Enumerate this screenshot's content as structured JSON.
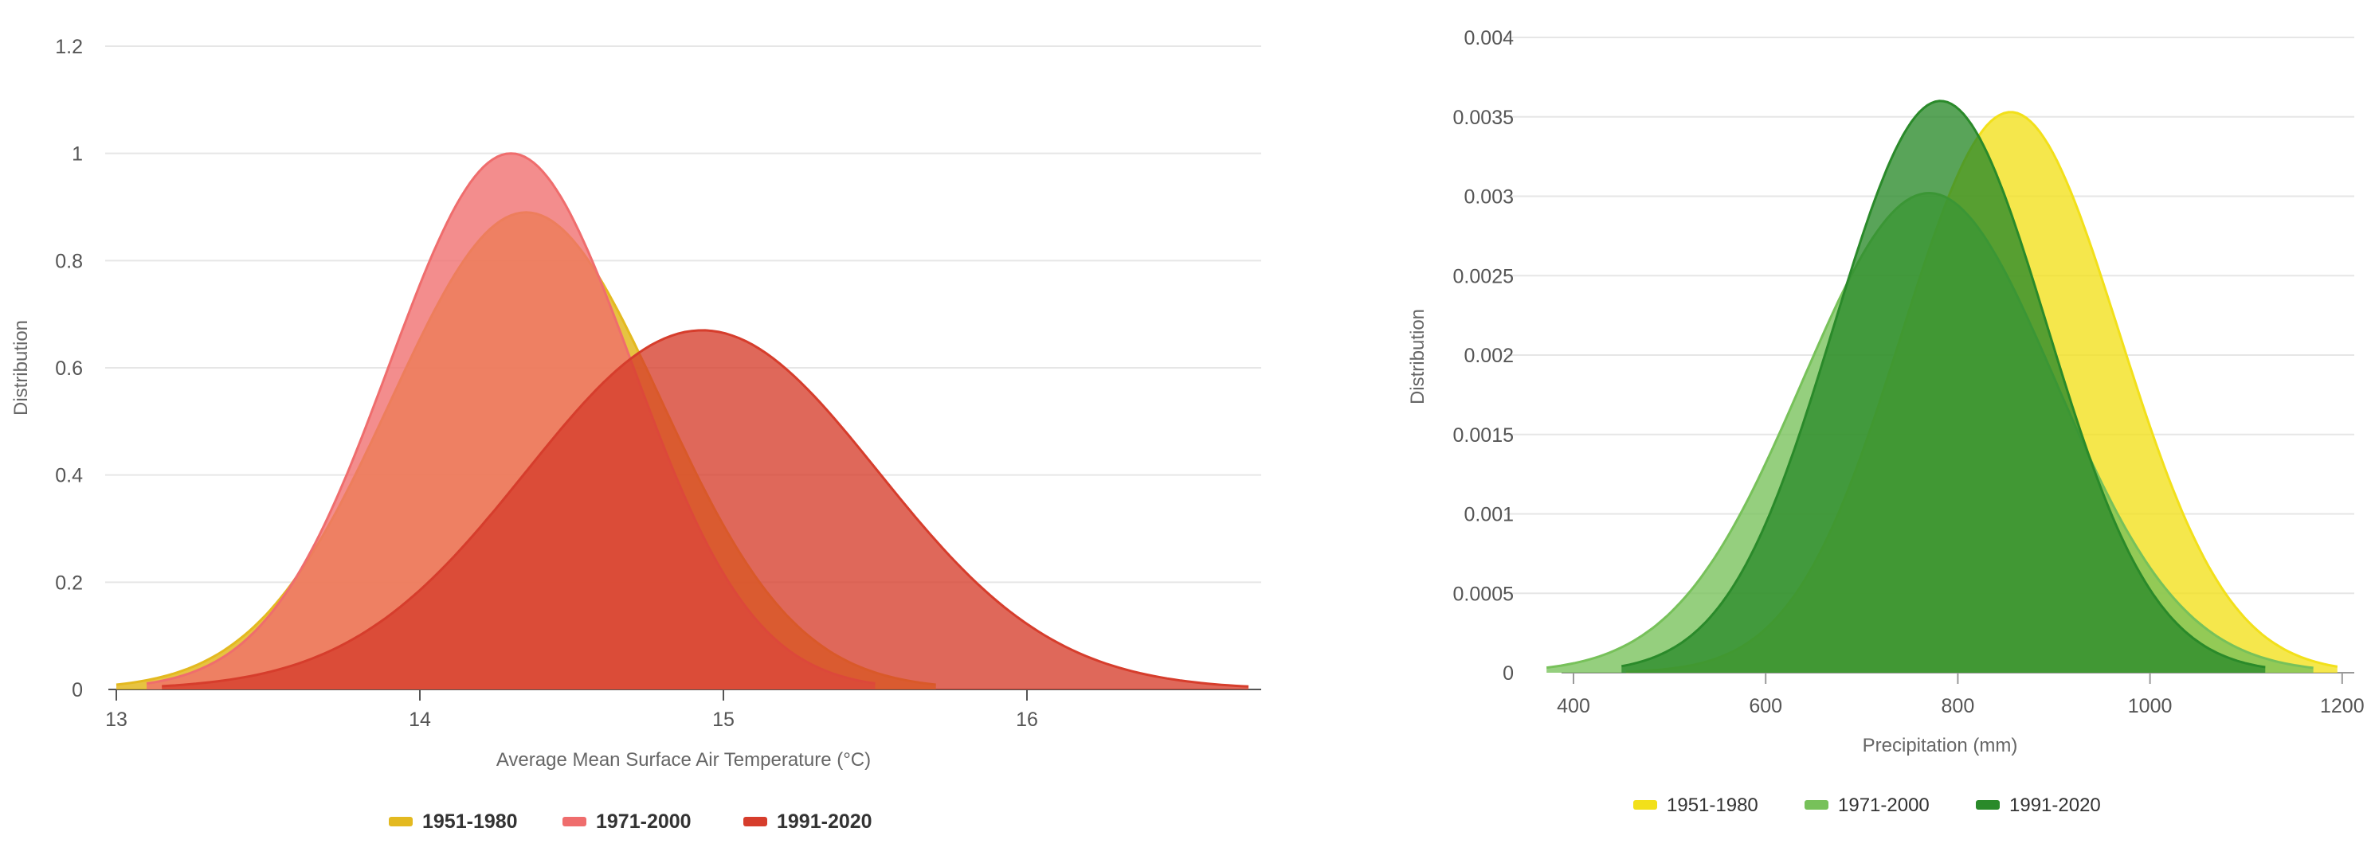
{
  "chart_data": [
    {
      "type": "area",
      "title": "",
      "xlabel": "Average Mean Surface Air Temperature (°C)",
      "ylabel": "Distribution",
      "xlim": [
        12.98,
        16.73
      ],
      "ylim": [
        0,
        1.2
      ],
      "x_ticks": [
        "13",
        "14",
        "15",
        "16"
      ],
      "y_ticks": [
        "0",
        "0.2",
        "0.4",
        "0.6",
        "0.8",
        "1",
        "1.2"
      ],
      "grid": true,
      "legend_position": "bottom-center",
      "series": [
        {
          "name": "1951-1980",
          "color": "#e3b920",
          "mean": 14.35,
          "sd": 0.445,
          "peak": 0.89,
          "range": [
            13.0,
            15.7
          ]
        },
        {
          "name": "1971-2000",
          "color": "#ef6d6d",
          "mean": 14.3,
          "sd": 0.4,
          "peak": 1.0,
          "range": [
            13.1,
            15.5
          ]
        },
        {
          "name": "1991-2020",
          "color": "#d63d2c",
          "mean": 14.93,
          "sd": 0.58,
          "peak": 0.67,
          "range": [
            13.15,
            16.73
          ]
        }
      ]
    },
    {
      "type": "area",
      "title": "",
      "xlabel": "Precipitation (mm)",
      "ylabel": "Distribution",
      "xlim": [
        368,
        1200
      ],
      "ylim": [
        0,
        0.004
      ],
      "x_ticks": [
        "400",
        "600",
        "800",
        "1000",
        "1200"
      ],
      "y_ticks": [
        "0",
        "0.0005",
        "0.001",
        "0.0015",
        "0.002",
        "0.0025",
        "0.003",
        "0.0035",
        "0.004"
      ],
      "grid": true,
      "legend_position": "bottom-center",
      "series": [
        {
          "name": "1951-1980",
          "color": "#f2e01a",
          "mean": 855,
          "sd": 113,
          "peak": 0.00353,
          "range": [
            455,
            1195
          ]
        },
        {
          "name": "1971-2000",
          "color": "#77c15a",
          "mean": 770,
          "sd": 132,
          "peak": 0.00302,
          "range": [
            372,
            1170
          ]
        },
        {
          "name": "1991-2020",
          "color": "#2a8a2a",
          "mean": 782,
          "sd": 111,
          "peak": 0.0036,
          "range": [
            450,
            1120
          ]
        }
      ]
    }
  ]
}
